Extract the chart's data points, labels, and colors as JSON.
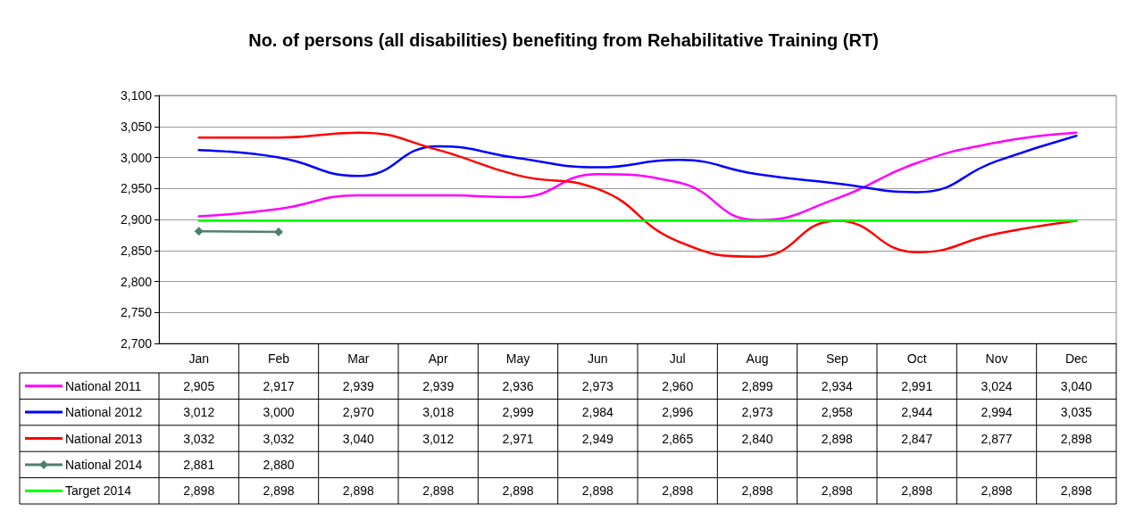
{
  "chart_data": {
    "type": "line",
    "title": "No. of persons (all disabilities) benefiting from Rehabilitative Training (RT)",
    "categories": [
      "Jan",
      "Feb",
      "Mar",
      "Apr",
      "May",
      "Jun",
      "Jul",
      "Aug",
      "Sep",
      "Oct",
      "Nov",
      "Dec"
    ],
    "series": [
      {
        "name": "National 2011",
        "color": "#ff00ff",
        "values": [
          2905,
          2917,
          2939,
          2939,
          2936,
          2973,
          2960,
          2899,
          2934,
          2991,
          3024,
          3040
        ],
        "value_labels": [
          "2,905",
          "2,917",
          "2,939",
          "2,939",
          "2,936",
          "2,973",
          "2,960",
          "2,899",
          "2,934",
          "2,991",
          "3,024",
          "3,040"
        ]
      },
      {
        "name": "National 2012",
        "color": "#0000ff",
        "values": [
          3012,
          3000,
          2970,
          3018,
          2999,
          2984,
          2996,
          2973,
          2958,
          2944,
          2994,
          3035
        ],
        "value_labels": [
          "3,012",
          "3,000",
          "2,970",
          "3,018",
          "2,999",
          "2,984",
          "2,996",
          "2,973",
          "2,958",
          "2,944",
          "2,994",
          "3,035"
        ]
      },
      {
        "name": "National 2013",
        "color": "#ff0000",
        "values": [
          3032,
          3032,
          3040,
          3012,
          2971,
          2949,
          2865,
          2840,
          2898,
          2847,
          2877,
          2898
        ],
        "value_labels": [
          "3,032",
          "3,032",
          "3,040",
          "3,012",
          "2,971",
          "2,949",
          "2,865",
          "2,840",
          "2,898",
          "2,847",
          "2,877",
          "2,898"
        ]
      },
      {
        "name": "National 2014",
        "color": "#4f7f6f",
        "marker": "diamond",
        "values": [
          2881,
          2880,
          null,
          null,
          null,
          null,
          null,
          null,
          null,
          null,
          null,
          null
        ],
        "value_labels": [
          "2,881",
          "2,880",
          null,
          null,
          null,
          null,
          null,
          null,
          null,
          null,
          null,
          null
        ]
      },
      {
        "name": "Target 2014",
        "color": "#00ff00",
        "values": [
          2898,
          2898,
          2898,
          2898,
          2898,
          2898,
          2898,
          2898,
          2898,
          2898,
          2898,
          2898
        ],
        "value_labels": [
          "2,898",
          "2,898",
          "2,898",
          "2,898",
          "2,898",
          "2,898",
          "2,898",
          "2,898",
          "2,898",
          "2,898",
          "2,898",
          "2,898"
        ]
      }
    ],
    "ylim": [
      2700,
      3100
    ],
    "yticks": [
      {
        "value": 2700,
        "label": "2,700"
      },
      {
        "value": 2750,
        "label": "2,750"
      },
      {
        "value": 2800,
        "label": "2,800"
      },
      {
        "value": 2850,
        "label": "2,850"
      },
      {
        "value": 2900,
        "label": "2,900"
      },
      {
        "value": 2950,
        "label": "2,950"
      },
      {
        "value": 3000,
        "label": "3,000"
      },
      {
        "value": 3050,
        "label": "3,050"
      },
      {
        "value": 3100,
        "label": "3,100"
      }
    ],
    "grid": "y",
    "legend": "bottom",
    "marker": "none",
    "line_style": "solid"
  }
}
